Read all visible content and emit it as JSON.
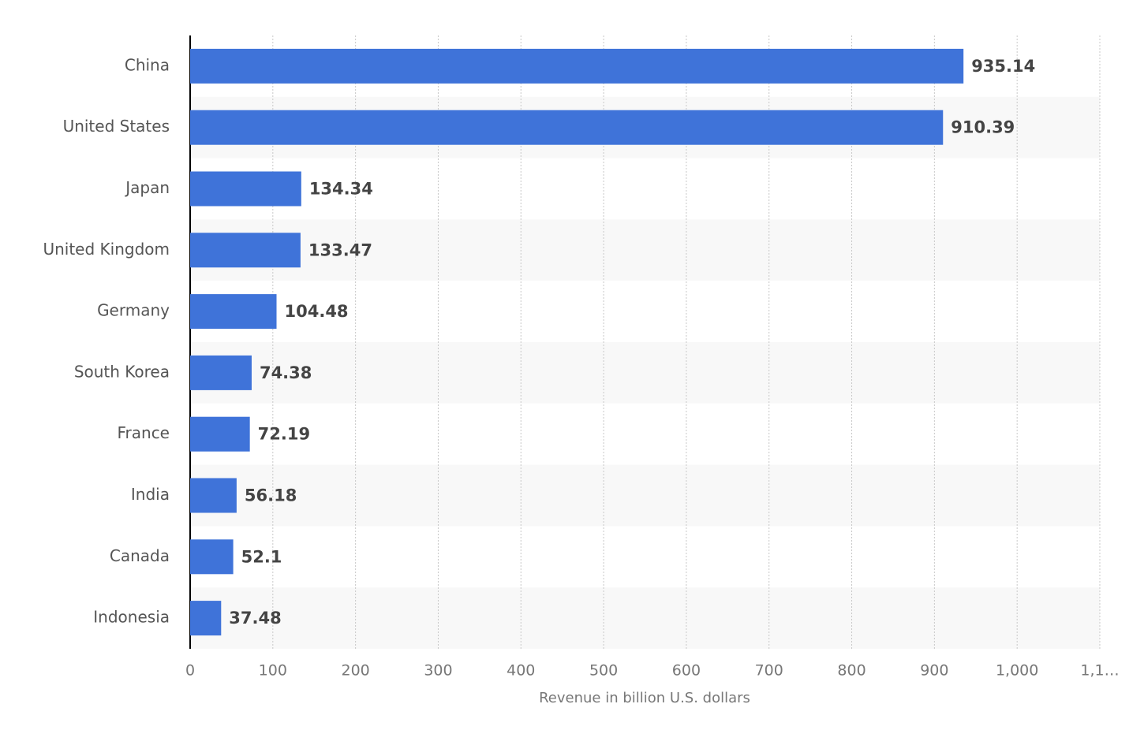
{
  "chart_data": {
    "type": "hbar",
    "x_label": "Revenue in billion U.S. dollars",
    "categories": [
      "China",
      "United States",
      "Japan",
      "United Kingdom",
      "Germany",
      "South Korea",
      "France",
      "India",
      "Canada",
      "Indonesia"
    ],
    "values": [
      935.14,
      910.39,
      134.34,
      133.47,
      104.48,
      74.38,
      72.19,
      56.18,
      52.1,
      37.48
    ],
    "color": "#3f73d9",
    "xlim": [
      0,
      1100
    ],
    "xticks": [
      0,
      100,
      200,
      300,
      400,
      500,
      600,
      700,
      800,
      900,
      {
        "value": 1000,
        "label": "1,000"
      },
      {
        "value": 1100,
        "label": "1,1…"
      }
    ],
    "grid": true
  }
}
